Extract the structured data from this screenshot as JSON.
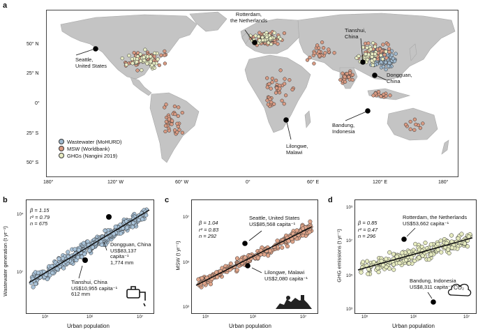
{
  "map": {
    "panel_label": "a",
    "lat_labels": [
      "50° N",
      "25° N",
      "0°",
      "25° S",
      "50° S"
    ],
    "lon_labels": [
      "180°",
      "120° W",
      "60° W",
      "0°",
      "60° E",
      "120° E",
      "180°"
    ],
    "legend": [
      {
        "label": "Wastewater (MoHURD)",
        "color": "#9fb9cf"
      },
      {
        "label": "MSW (Worldbank)",
        "color": "#d99a82"
      },
      {
        "label": "GHGs (Nangini 2019)",
        "color": "#e8ecc3"
      }
    ],
    "annotations": {
      "seattle": [
        "Seattle,",
        "United States"
      ],
      "rotterdam": [
        "Rotterdam,",
        "the Netherlands"
      ],
      "tianshui": [
        "Tianshui,",
        "China"
      ],
      "dongguan": [
        "Dongguan,",
        "China"
      ],
      "bandung": [
        "Bandung,",
        "Indonesia"
      ],
      "lilongwe": [
        "Lilongwe,",
        "Malawi"
      ]
    },
    "colors": {
      "ocean": "#ffffff",
      "land": "#c4c4c4"
    }
  },
  "panel_b": {
    "panel_label": "b",
    "stats": [
      "β = 1.15",
      "r² = 0.79",
      "n = 675"
    ],
    "ylabel": "Wastewater generation (t yr⁻¹)",
    "xlabel": "Urban population",
    "y_ticks": [
      "10⁷",
      "10⁴"
    ],
    "x_ticks": [
      "10⁵",
      "10⁶",
      "10⁷"
    ],
    "ann_dongguan": [
      "Dongguan, China",
      "US$83,137 capita⁻¹",
      "1,774 mm"
    ],
    "ann_tianshui": [
      "Tianshui, China",
      "US$10,955 capita⁻¹",
      "612 mm"
    ],
    "icon": "faucet-icon",
    "color": "#a9c3d9"
  },
  "panel_c": {
    "panel_label": "c",
    "stats": [
      "β = 1.04",
      "r² = 0.83",
      "n = 292"
    ],
    "ylabel": "MSW (t yr⁻¹)",
    "xlabel": "Urban population",
    "y_ticks": [
      "10⁷",
      "10⁵",
      "10³"
    ],
    "x_ticks": [
      "10⁵",
      "10⁶",
      "10⁷"
    ],
    "ann_seattle": [
      "Seattle, United States",
      "US$85,568 capita⁻¹"
    ],
    "ann_lilongwe": [
      "Lilongwe, Malawi",
      "US$2,080 capita⁻¹"
    ],
    "icon": "trash-pile-icon",
    "color": "#e0a58a"
  },
  "panel_d": {
    "panel_label": "d",
    "stats": [
      "β = 0.85",
      "r² = 0.47",
      "n = 296"
    ],
    "ylabel": "GHG emissions (t yr⁻¹)",
    "xlabel": "Urban population",
    "y_ticks": [
      "10⁹",
      "10⁷",
      "10⁵",
      "10³"
    ],
    "x_ticks": [
      "10⁵",
      "10⁶",
      "10⁷"
    ],
    "ann_rotterdam": [
      "Rotterdam, the Netherlands",
      "US$53,662 capita⁻¹"
    ],
    "ann_bandung": [
      "Bandung, Indonesia",
      "US$8,311 capita⁻¹"
    ],
    "icon": "co2-cloud-icon",
    "co2": "CO₂",
    "color": "#e6ebbf"
  },
  "chart_data": [
    {
      "type": "scatter",
      "title": "",
      "xlabel": "Urban population",
      "ylabel": "Wastewater generation (t yr⁻¹)",
      "log_x": true,
      "log_y": true,
      "n": 675,
      "beta": 1.15,
      "r2": 0.79,
      "highlighted": [
        {
          "name": "Dongguan, China",
          "x": 2000000
        },
        {
          "name": "Tianshui, China",
          "x": 900000
        }
      ]
    },
    {
      "type": "scatter",
      "title": "",
      "xlabel": "Urban population",
      "ylabel": "MSW (t yr⁻¹)",
      "log_x": true,
      "log_y": true,
      "n": 292,
      "beta": 1.04,
      "r2": 0.83,
      "highlighted": [
        {
          "name": "Seattle, United States",
          "x": 650000,
          "y": 700000
        },
        {
          "name": "Lilongwe, Malawi",
          "x": 700000,
          "y": 80000
        }
      ]
    },
    {
      "type": "scatter",
      "title": "",
      "xlabel": "Urban population",
      "ylabel": "GHG emissions (t yr⁻¹)",
      "log_x": true,
      "log_y": true,
      "n": 296,
      "beta": 0.85,
      "r2": 0.47,
      "highlighted": [
        {
          "name": "Rotterdam, the Netherlands",
          "x": 600000,
          "y": 10000000
        },
        {
          "name": "Bandung, Indonesia",
          "x": 2500000,
          "y": 2000
        }
      ]
    }
  ]
}
